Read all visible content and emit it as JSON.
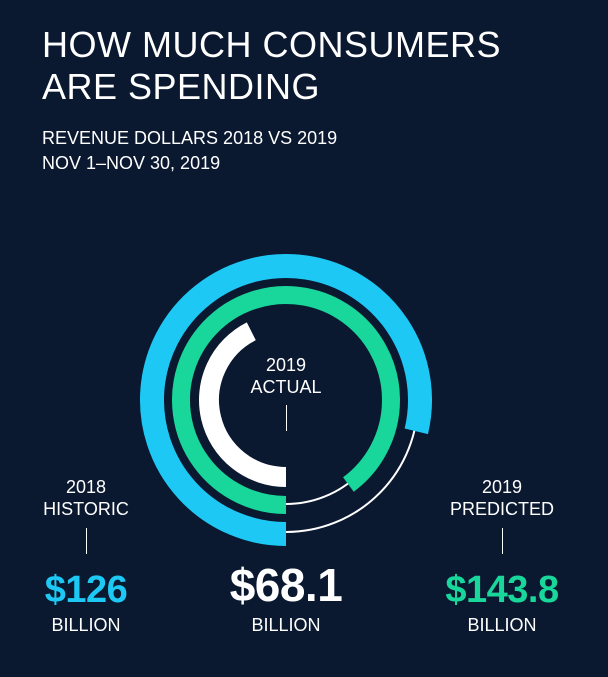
{
  "header": {
    "title_line1": "HOW MUCH CONSUMERS",
    "title_line2": "ARE SPENDING",
    "subtitle_line1": "REVENUE DOLLARS 2018 VS 2019",
    "subtitle_line2": "NOV 1–NOV 30, 2019"
  },
  "colors": {
    "background": "#0a1830",
    "historic": "#1ec8f5",
    "predicted": "#19d69b",
    "actual": "#ffffff"
  },
  "chart_data": {
    "type": "radial-bar",
    "title": "HOW MUCH CONSUMERS ARE SPENDING",
    "subtitle": "REVENUE DOLLARS 2018 VS 2019, NOV 1–NOV 30, 2019",
    "unit": "BILLION",
    "max_value": 160,
    "series": [
      {
        "name": "2018 HISTORIC",
        "line1": "2018",
        "line2": "HISTORIC",
        "display": "$126",
        "value": 126,
        "unit": "BILLION",
        "color": "#1ec8f5"
      },
      {
        "name": "2019 PREDICTED",
        "line1": "2019",
        "line2": "PREDICTED",
        "display": "$143.8",
        "value": 143.8,
        "unit": "BILLION",
        "color": "#19d69b"
      },
      {
        "name": "2019 ACTUAL",
        "line1": "2019",
        "line2": "ACTUAL",
        "display": "$68.1",
        "value": 68.1,
        "unit": "BILLION",
        "color": "#ffffff"
      }
    ]
  }
}
